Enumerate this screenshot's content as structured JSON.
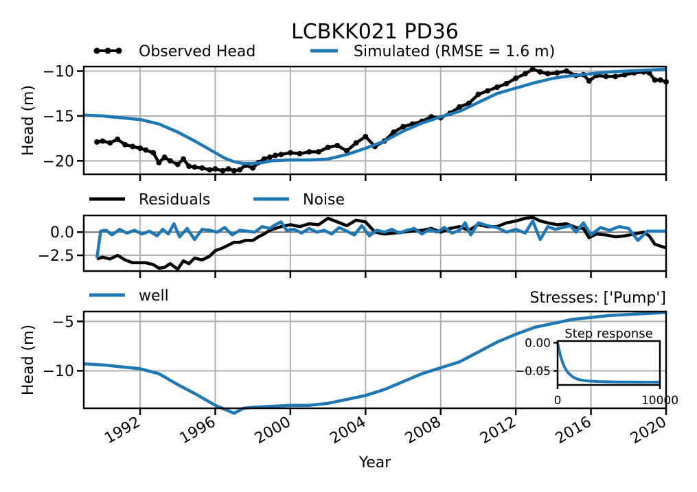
{
  "figure": {
    "title": "LCBKK021 PD36",
    "xlabel": "Year",
    "colors": {
      "observed": "#000000",
      "simulated": "#1f77b4",
      "grid": "#b0b0b0"
    }
  },
  "chart_data": [
    {
      "type": "line",
      "ylabel": "Head (m)",
      "xlim": [
        1989.0,
        2020.0
      ],
      "ylim": [
        -21.5,
        -9.5
      ],
      "yticks": [
        -20,
        -15,
        -10
      ],
      "ytick_labels": [
        "−20",
        "−15",
        "−10"
      ],
      "grid": true,
      "legend": "top, above plot",
      "series": [
        {
          "name": "Observed Head",
          "style": "line-markers",
          "color": "#000000",
          "x": [
            1989.7,
            1990.0,
            1990.4,
            1990.8,
            1991.2,
            1991.6,
            1992.0,
            1992.3,
            1992.7,
            1993.0,
            1993.3,
            1993.6,
            1994.0,
            1994.3,
            1994.6,
            1994.9,
            1995.3,
            1995.7,
            1996.0,
            1996.4,
            1996.7,
            1997.0,
            1997.3,
            1997.6,
            1998.0,
            1998.3,
            1998.6,
            1998.9,
            1999.2,
            1999.5,
            2000.0,
            2000.5,
            2001.0,
            2001.5,
            2002.0,
            2002.5,
            2003.0,
            2003.5,
            2004.0,
            2004.5,
            2005.0,
            2005.5,
            2006.0,
            2006.5,
            2007.0,
            2007.5,
            2008.0,
            2008.5,
            2009.0,
            2009.5,
            2010.0,
            2010.5,
            2011.0,
            2011.5,
            2012.0,
            2012.5,
            2012.9,
            2013.3,
            2013.7,
            2014.2,
            2014.7,
            2015.2,
            2015.6,
            2015.9,
            2016.3,
            2016.8,
            2017.3,
            2017.8,
            2018.3,
            2018.8,
            2019.1,
            2019.4,
            2019.7,
            2020.0
          ],
          "y": [
            -17.9,
            -17.8,
            -18.0,
            -17.6,
            -18.2,
            -18.4,
            -18.6,
            -18.8,
            -19.1,
            -20.2,
            -19.6,
            -20.0,
            -20.4,
            -19.8,
            -20.6,
            -20.7,
            -20.8,
            -21.0,
            -20.9,
            -21.1,
            -20.9,
            -21.1,
            -21.0,
            -20.5,
            -20.8,
            -20.2,
            -19.8,
            -19.6,
            -19.4,
            -19.3,
            -19.1,
            -19.2,
            -19.0,
            -19.0,
            -18.5,
            -18.3,
            -18.9,
            -18.0,
            -17.3,
            -18.4,
            -17.8,
            -16.8,
            -16.2,
            -15.9,
            -15.6,
            -15.1,
            -15.2,
            -14.7,
            -14.0,
            -13.6,
            -12.6,
            -12.2,
            -11.8,
            -11.4,
            -10.8,
            -10.3,
            -9.8,
            -10.1,
            -10.3,
            -10.2,
            -10.0,
            -10.5,
            -10.4,
            -11.1,
            -10.5,
            -10.6,
            -10.6,
            -10.4,
            -10.2,
            -10.1,
            -10.2,
            -11.0,
            -11.0,
            -11.2
          ]
        },
        {
          "name": "Simulated (RMSE = 1.6 m)",
          "style": "line",
          "color": "#1f77b4",
          "x": [
            1989.0,
            1990.0,
            1991.0,
            1992.0,
            1993.0,
            1994.0,
            1995.0,
            1996.0,
            1996.5,
            1997.0,
            1997.5,
            1998.0,
            1998.5,
            1999.0,
            2000.0,
            2001.0,
            2002.0,
            2003.0,
            2004.0,
            2005.0,
            2006.0,
            2007.0,
            2008.0,
            2009.0,
            2010.0,
            2011.0,
            2012.0,
            2013.0,
            2014.0,
            2015.0,
            2016.0,
            2017.0,
            2018.0,
            2019.0,
            2020.0
          ],
          "y": [
            -14.9,
            -15.0,
            -15.2,
            -15.4,
            -15.9,
            -16.8,
            -17.9,
            -19.1,
            -19.7,
            -20.1,
            -20.3,
            -20.3,
            -20.2,
            -20.0,
            -19.9,
            -19.9,
            -19.8,
            -19.3,
            -18.6,
            -17.8,
            -16.7,
            -15.8,
            -15.1,
            -14.5,
            -13.5,
            -12.5,
            -11.9,
            -11.3,
            -10.8,
            -10.5,
            -10.3,
            -10.1,
            -10.0,
            -9.9,
            -9.8
          ]
        }
      ]
    },
    {
      "type": "line",
      "ylabel": "",
      "xlim": [
        1989.0,
        2020.0
      ],
      "ylim": [
        -4.2,
        1.8
      ],
      "yticks": [
        -2.5,
        0.0
      ],
      "ytick_labels": [
        "−2.5",
        "0.0"
      ],
      "grid": true,
      "legend": "top, above plot",
      "series": [
        {
          "name": "Residuals",
          "color": "#000000",
          "x": [
            1989.7,
            1990.0,
            1990.4,
            1990.8,
            1991.2,
            1991.6,
            1992.0,
            1992.3,
            1992.7,
            1993.0,
            1993.3,
            1993.6,
            1994.0,
            1994.3,
            1994.6,
            1994.9,
            1995.3,
            1995.7,
            1996.0,
            1996.4,
            1996.7,
            1997.0,
            1997.3,
            1997.6,
            1998.0,
            1998.3,
            1998.6,
            1998.9,
            1999.2,
            1999.5,
            2000.0,
            2000.5,
            2001.0,
            2001.5,
            2002.0,
            2002.5,
            2003.0,
            2003.5,
            2004.0,
            2004.5,
            2005.0,
            2005.5,
            2006.0,
            2006.5,
            2007.0,
            2007.5,
            2008.0,
            2008.5,
            2009.0,
            2009.5,
            2010.0,
            2010.5,
            2011.0,
            2011.5,
            2012.0,
            2012.5,
            2012.9,
            2013.3,
            2013.7,
            2014.2,
            2014.7,
            2015.2,
            2015.6,
            2015.9,
            2016.3,
            2016.8,
            2017.3,
            2017.8,
            2018.3,
            2018.8,
            2019.1,
            2019.4,
            2019.7,
            2020.0
          ],
          "y": [
            -2.9,
            -2.7,
            -2.9,
            -2.5,
            -3.0,
            -3.3,
            -3.3,
            -3.3,
            -3.5,
            -3.9,
            -3.8,
            -3.4,
            -4.0,
            -3.1,
            -3.4,
            -2.8,
            -3.0,
            -2.6,
            -2.0,
            -1.7,
            -1.4,
            -1.1,
            -1.1,
            -0.9,
            -0.9,
            -0.5,
            -0.2,
            0.2,
            0.4,
            0.6,
            0.8,
            0.6,
            0.9,
            0.8,
            1.5,
            1.1,
            0.7,
            1.3,
            1.1,
            0.0,
            -0.2,
            -0.1,
            0.0,
            0.1,
            0.2,
            0.4,
            0.0,
            0.4,
            0.6,
            0.2,
            0.8,
            0.6,
            0.6,
            1.0,
            1.2,
            1.5,
            1.6,
            1.2,
            1.0,
            0.8,
            0.9,
            0.5,
            0.4,
            -0.6,
            -0.2,
            -0.3,
            -0.5,
            -0.4,
            -0.2,
            0.0,
            -0.4,
            -1.3,
            -1.5,
            -1.7
          ]
        },
        {
          "name": "Noise",
          "color": "#1f77b4",
          "x": [
            1989.7,
            1989.9,
            1990.2,
            1990.5,
            1990.9,
            1991.3,
            1991.7,
            1992.1,
            1992.5,
            1992.9,
            1993.2,
            1993.5,
            1993.8,
            1994.1,
            1994.5,
            1994.9,
            1995.3,
            1995.7,
            1996.1,
            1996.5,
            1996.9,
            1997.3,
            1997.7,
            1998.1,
            1998.5,
            1998.9,
            1999.2,
            1999.5,
            1999.8,
            2000.2,
            2000.6,
            2001.0,
            2001.4,
            2001.8,
            2002.2,
            2002.6,
            2003.0,
            2003.4,
            2003.8,
            2004.2,
            2004.6,
            2005.0,
            2005.4,
            2005.8,
            2006.2,
            2006.6,
            2007.0,
            2007.4,
            2007.8,
            2008.2,
            2008.6,
            2009.0,
            2009.3,
            2009.6,
            2010.0,
            2010.5,
            2011.0,
            2011.5,
            2012.0,
            2012.5,
            2012.9,
            2013.3,
            2013.7,
            2014.1,
            2014.5,
            2014.9,
            2015.2,
            2015.6,
            2016.0,
            2016.5,
            2017.0,
            2017.5,
            2018.0,
            2018.5,
            2019.0,
            2019.3,
            2019.6,
            2020.0
          ],
          "y": [
            -2.8,
            0.1,
            0.2,
            -0.3,
            0.3,
            -0.1,
            0.2,
            -0.2,
            0.1,
            -0.4,
            0.3,
            -0.2,
            0.9,
            -0.5,
            0.4,
            -0.8,
            0.3,
            0.2,
            0.0,
            0.5,
            -0.3,
            0.2,
            0.1,
            0.0,
            0.6,
            0.4,
            0.8,
            1.1,
            0.2,
            0.3,
            -0.1,
            0.4,
            0.0,
            0.2,
            -0.2,
            0.5,
            0.1,
            -0.3,
            0.7,
            -0.4,
            0.2,
            0.0,
            0.3,
            -0.1,
            0.2,
            0.4,
            -0.2,
            0.3,
            0.0,
            0.5,
            -0.1,
            0.2,
            1.0,
            -0.3,
            1.0,
            0.7,
            0.5,
            0.0,
            0.3,
            -0.1,
            1.2,
            -0.8,
            0.6,
            0.3,
            0.5,
            0.7,
            0.0,
            1.0,
            -0.3,
            0.5,
            0.2,
            0.6,
            0.4,
            -0.9,
            0.1,
            0.1,
            0.1,
            0.1
          ]
        }
      ]
    },
    {
      "type": "line",
      "ylabel": "Head (m)",
      "xlim": [
        1989.0,
        2020.0
      ],
      "ylim": [
        -13.8,
        -4.0
      ],
      "yticks": [
        -10,
        -5
      ],
      "ytick_labels": [
        "−10",
        "−5"
      ],
      "xticks": [
        1992,
        1996,
        2000,
        2004,
        2008,
        2012,
        2016,
        2020
      ],
      "xtick_labels": [
        "1992",
        "1996",
        "2000",
        "2004",
        "2008",
        "2012",
        "2016",
        "2020"
      ],
      "grid": true,
      "legend": "top-left, above plot",
      "annotation": "Stresses: ['Pump']",
      "series": [
        {
          "name": "well",
          "color": "#1f77b4",
          "x": [
            1989.0,
            1990.0,
            1991.0,
            1992.0,
            1993.0,
            1994.0,
            1995.0,
            1996.0,
            1997.0,
            1997.5,
            1998.0,
            1999.0,
            2000.0,
            2001.0,
            2002.0,
            2003.0,
            2004.0,
            2005.0,
            2006.0,
            2007.0,
            2008.0,
            2009.0,
            2010.0,
            2011.0,
            2012.0,
            2013.0,
            2014.0,
            2015.0,
            2016.0,
            2017.0,
            2018.0,
            2019.0,
            2020.0
          ],
          "y": [
            -9.3,
            -9.4,
            -9.6,
            -9.8,
            -10.3,
            -11.4,
            -12.4,
            -13.5,
            -14.3,
            -13.8,
            -13.7,
            -13.6,
            -13.5,
            -13.5,
            -13.3,
            -12.9,
            -12.5,
            -11.9,
            -11.1,
            -10.3,
            -9.7,
            -9.1,
            -8.1,
            -7.1,
            -6.3,
            -5.6,
            -5.2,
            -4.8,
            -4.6,
            -4.4,
            -4.3,
            -4.2,
            -4.1
          ]
        }
      ]
    },
    {
      "type": "line",
      "title": "Step response",
      "xlim": [
        0,
        10000
      ],
      "ylim": [
        -0.075,
        0.003
      ],
      "xticks": [
        0,
        10000
      ],
      "xtick_labels": [
        "0",
        "10000"
      ],
      "yticks": [
        -0.05,
        0.0
      ],
      "ytick_labels": [
        "−0.05",
        "0.00"
      ],
      "grid": false,
      "series": [
        {
          "color": "#1f77b4",
          "x": [
            0,
            250,
            500,
            750,
            1000,
            1500,
            2000,
            2500,
            3000,
            4000,
            5000,
            6000,
            7000,
            8000,
            9000,
            10000
          ],
          "y": [
            0.0,
            -0.021,
            -0.036,
            -0.046,
            -0.053,
            -0.061,
            -0.065,
            -0.067,
            -0.068,
            -0.069,
            -0.0695,
            -0.0698,
            -0.0699,
            -0.07,
            -0.07,
            -0.07
          ]
        }
      ]
    }
  ]
}
